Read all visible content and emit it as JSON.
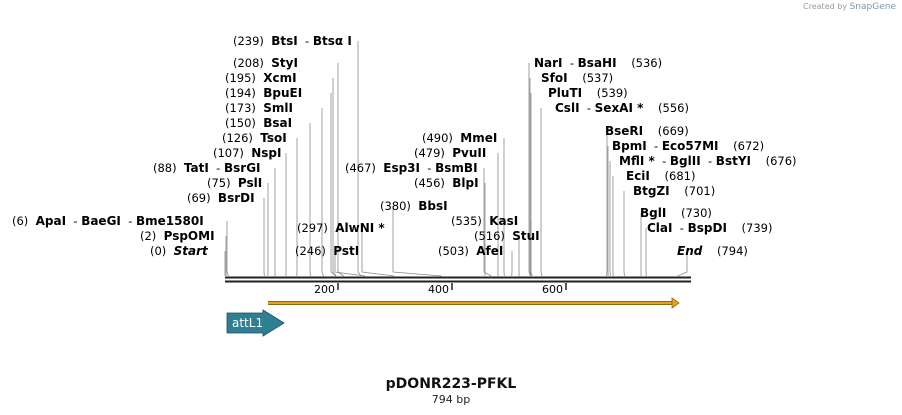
{
  "credit": {
    "prefix": "Created by",
    "brand": "SnapGene"
  },
  "title": "pDONR223-PFKL",
  "length_label": "794 bp",
  "total_bp": 794,
  "axis_ticks": [
    200,
    400,
    600
  ],
  "sites": [
    {
      "pos": "(239)",
      "names": [
        "BtsI",
        "Btsα I"
      ],
      "bp": 239
    },
    {
      "pos": "(208)",
      "names": [
        "StyI"
      ],
      "bp": 208
    },
    {
      "pos": "(195)",
      "names": [
        "XcmI"
      ],
      "bp": 195
    },
    {
      "pos": "(194)",
      "names": [
        "BpuEI"
      ],
      "bp": 194
    },
    {
      "pos": "(173)",
      "names": [
        "SmlI"
      ],
      "bp": 173
    },
    {
      "pos": "(150)",
      "names": [
        "BsaI"
      ],
      "bp": 150
    },
    {
      "pos": "(126)",
      "names": [
        "TsoI"
      ],
      "bp": 126
    },
    {
      "pos": "(107)",
      "names": [
        "NspI"
      ],
      "bp": 107
    },
    {
      "pos": "(88)",
      "names": [
        "TatI",
        "BsrGI"
      ],
      "bp": 88
    },
    {
      "pos": "(75)",
      "names": [
        "PslI"
      ],
      "bp": 75
    },
    {
      "pos": "(69)",
      "names": [
        "BsrDI"
      ],
      "bp": 69
    },
    {
      "pos": "(6)",
      "names": [
        "ApaI",
        "BaeGI",
        "Bme1580I"
      ],
      "bp": 6
    },
    {
      "pos": "(2)",
      "names": [
        "PspOMI"
      ],
      "bp": 2
    },
    {
      "pos": "(0)",
      "names": [
        "Start"
      ],
      "bp": 0,
      "italic": true
    },
    {
      "pos": "(467)",
      "names": [
        "Esp3I",
        "BsmBI"
      ],
      "bp": 467,
      "pos_left": true
    },
    {
      "pos": "(490)",
      "names": [
        "MmeI"
      ],
      "bp": 490
    },
    {
      "pos": "(479)",
      "names": [
        "PvuII"
      ],
      "bp": 479
    },
    {
      "pos": "(456)",
      "names": [
        "BlpI"
      ],
      "bp": 456
    },
    {
      "pos": "(380)",
      "names": [
        "BbsI"
      ],
      "bp": 380
    },
    {
      "pos": "(297)",
      "names": [
        "AlwNI *"
      ],
      "bp": 297
    },
    {
      "pos": "(246)",
      "names": [
        "PstI"
      ],
      "bp": 246
    },
    {
      "pos": "(535)",
      "names": [
        "KasI"
      ],
      "bp": 535
    },
    {
      "pos": "(516)",
      "names": [
        "StuI"
      ],
      "bp": 516
    },
    {
      "pos": "(503)",
      "names": [
        "AfeI"
      ],
      "bp": 503
    },
    {
      "pos": "(536)",
      "names": [
        "NarI",
        "BsaHI"
      ],
      "bp": 536,
      "pos_right": true
    },
    {
      "pos": "(537)",
      "names": [
        "SfoI"
      ],
      "bp": 537,
      "pos_right": true
    },
    {
      "pos": "(539)",
      "names": [
        "PluTI"
      ],
      "bp": 539,
      "pos_right": true
    },
    {
      "pos": "(556)",
      "names": [
        "CslI",
        "SexAI *"
      ],
      "bp": 556,
      "pos_right": true
    },
    {
      "pos": "(669)",
      "names": [
        "BseRI"
      ],
      "bp": 669,
      "pos_right": true
    },
    {
      "pos": "(672)",
      "names": [
        "BpmI",
        "Eco57MI"
      ],
      "bp": 672,
      "pos_right": true
    },
    {
      "pos": "(676)",
      "names": [
        "MflI *",
        "BglII",
        "BstYI"
      ],
      "bp": 676,
      "pos_right": true
    },
    {
      "pos": "(681)",
      "names": [
        "EciI"
      ],
      "bp": 681,
      "pos_right": true
    },
    {
      "pos": "(701)",
      "names": [
        "BtgZI"
      ],
      "bp": 701,
      "pos_right": true
    },
    {
      "pos": "(730)",
      "names": [
        "BglI"
      ],
      "bp": 730,
      "pos_right": true
    },
    {
      "pos": "(739)",
      "names": [
        "ClaI",
        "BspDI"
      ],
      "bp": 739,
      "pos_right": true
    },
    {
      "pos": "(794)",
      "names": [
        "End"
      ],
      "bp": 794,
      "pos_right": true,
      "italic": true
    }
  ],
  "features": [
    {
      "label": "attL1",
      "color": "#2f7f94"
    }
  ],
  "orf_color": "#e8a020"
}
